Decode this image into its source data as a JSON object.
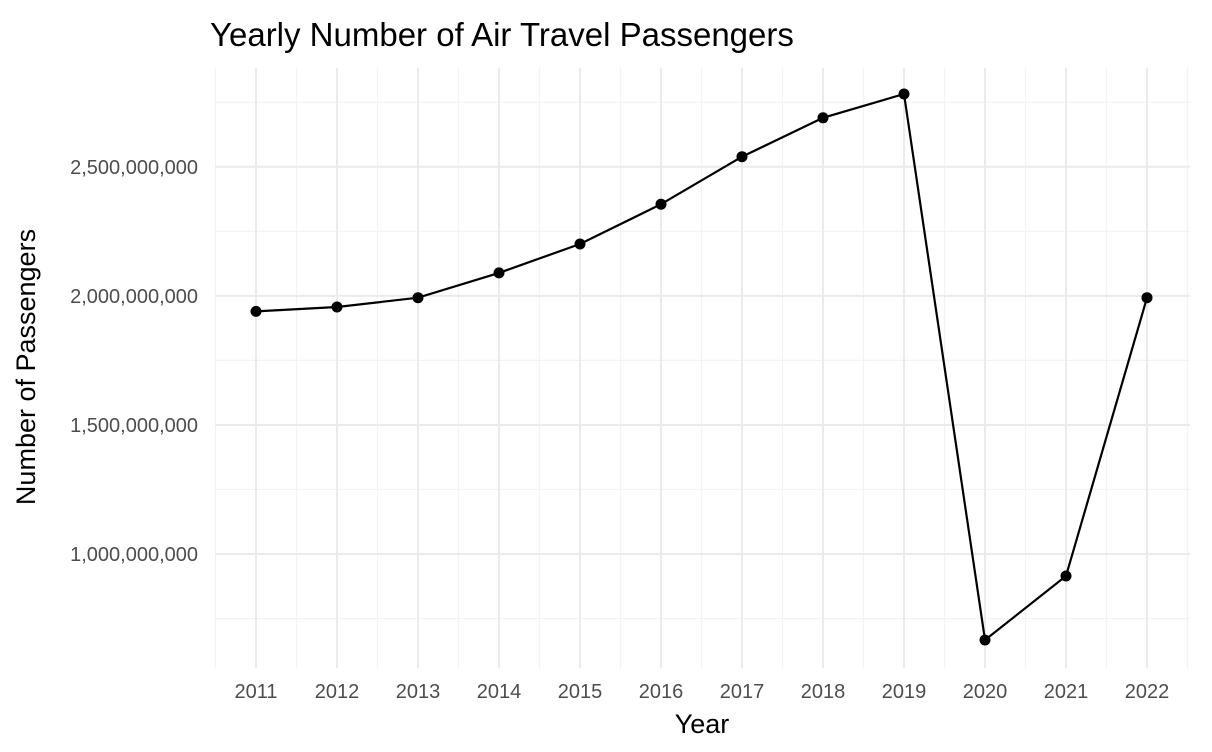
{
  "chart_data": {
    "type": "line",
    "title": "Yearly Number of Air Travel Passengers",
    "xlabel": "Year",
    "ylabel": "Number of Passengers",
    "x": [
      2011,
      2012,
      2013,
      2014,
      2015,
      2016,
      2017,
      2018,
      2019,
      2020,
      2021,
      2022
    ],
    "series": [
      {
        "values": [
          1940000000,
          1957000000,
          1993000000,
          2089000000,
          2201000000,
          2355000000,
          2539000000,
          2690000000,
          2782000000,
          667000000,
          915000000,
          1993000000
        ]
      }
    ],
    "xticks": [
      "2011",
      "2012",
      "2013",
      "2014",
      "2015",
      "2016",
      "2017",
      "2018",
      "2019",
      "2020",
      "2021",
      "2022"
    ],
    "yticks": [
      1000000000,
      1500000000,
      2000000000,
      2500000000
    ],
    "ytick_labels": [
      "1,000,000,000",
      "1,500,000,000",
      "2,000,000,000",
      "2,500,000,000"
    ],
    "ylim": [
      667000000,
      2782000000
    ],
    "grid": true,
    "legend": "none",
    "line_color": "#000000",
    "grid_color": "#ebebeb"
  }
}
